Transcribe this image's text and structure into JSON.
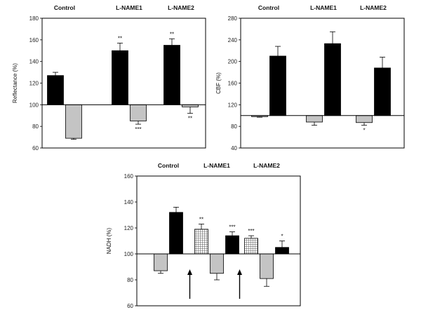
{
  "chart_data": [
    {
      "type": "bar",
      "id": "reflectance",
      "ylabel": "Reflectance (%)",
      "ylim": [
        60,
        180
      ],
      "yticks": [
        60,
        80,
        100,
        120,
        140,
        160,
        180
      ],
      "baseline": 100,
      "groups": [
        "Control",
        "L-NAME1",
        "L-NAME2"
      ],
      "bars": [
        {
          "group": "Control",
          "style": "black",
          "value": 127,
          "err": 3,
          "sig": ""
        },
        {
          "group": "Control",
          "style": "gray",
          "value": 69,
          "err": 1,
          "sig": ""
        },
        {
          "group": "L-NAME1",
          "style": "black",
          "value": 150,
          "err": 7,
          "sig": "**"
        },
        {
          "group": "L-NAME1",
          "style": "gray",
          "value": 85,
          "err": 3,
          "sig": "***"
        },
        {
          "group": "L-NAME2",
          "style": "black",
          "value": 155,
          "err": 6,
          "sig": "**"
        },
        {
          "group": "L-NAME2",
          "style": "gray",
          "value": 98,
          "err": 6,
          "sig": "**"
        }
      ]
    },
    {
      "type": "bar",
      "id": "cbf",
      "ylabel": "CBF (%)",
      "ylim": [
        40,
        280
      ],
      "yticks": [
        40,
        80,
        120,
        160,
        200,
        240,
        280
      ],
      "baseline": 100,
      "groups": [
        "Control",
        "L-NAME1",
        "L-NAME2"
      ],
      "bars": [
        {
          "group": "Control",
          "style": "gray",
          "value": 98,
          "err": 1,
          "sig": ""
        },
        {
          "group": "Control",
          "style": "black",
          "value": 210,
          "err": 18,
          "sig": ""
        },
        {
          "group": "L-NAME1",
          "style": "gray",
          "value": 88,
          "err": 6,
          "sig": ""
        },
        {
          "group": "L-NAME1",
          "style": "black",
          "value": 233,
          "err": 22,
          "sig": ""
        },
        {
          "group": "L-NAME2",
          "style": "gray",
          "value": 87,
          "err": 5,
          "sig": "*"
        },
        {
          "group": "L-NAME2",
          "style": "black",
          "value": 188,
          "err": 20,
          "sig": ""
        }
      ]
    },
    {
      "type": "bar",
      "id": "nadh",
      "ylabel": "NADH (%)",
      "ylim": [
        60,
        160
      ],
      "yticks": [
        60,
        80,
        100,
        120,
        140,
        160
      ],
      "baseline": 100,
      "groups": [
        "Control",
        "L-NAME1",
        "L-NAME2"
      ],
      "arrows_under": [
        "L-NAME1",
        "L-NAME2"
      ],
      "bars": [
        {
          "group": "Control",
          "style": "gray",
          "value": 87,
          "err": 2,
          "sig": ""
        },
        {
          "group": "Control",
          "style": "black",
          "value": 132,
          "err": 4,
          "sig": ""
        },
        {
          "group": "L-NAME1",
          "style": "hatch",
          "value": 119,
          "err": 4,
          "sig": "**"
        },
        {
          "group": "L-NAME1",
          "style": "gray",
          "value": 85,
          "err": 5,
          "sig": ""
        },
        {
          "group": "L-NAME1",
          "style": "black",
          "value": 114,
          "err": 3,
          "sig": "***"
        },
        {
          "group": "L-NAME2",
          "style": "hatch",
          "value": 112,
          "err": 2,
          "sig": "***"
        },
        {
          "group": "L-NAME2",
          "style": "gray",
          "value": 81,
          "err": 6,
          "sig": ""
        },
        {
          "group": "L-NAME2",
          "style": "black",
          "value": 105,
          "err": 5,
          "sig": "*"
        }
      ]
    }
  ],
  "colors": {
    "black": "#000000",
    "gray": "#c4c4c4",
    "hatch_bg": "#ffffff",
    "hatch_line": "#333333"
  }
}
